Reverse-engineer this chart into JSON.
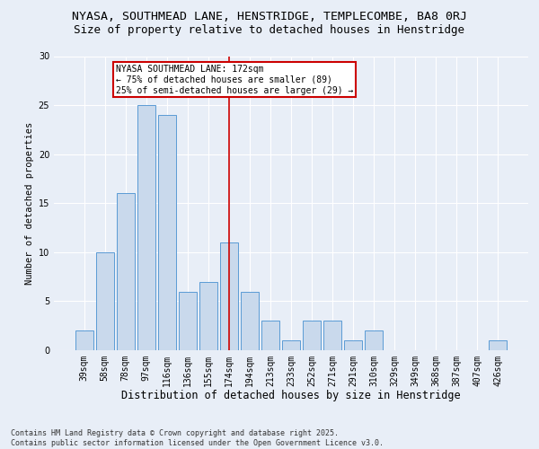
{
  "title1": "NYASA, SOUTHMEAD LANE, HENSTRIDGE, TEMPLECOMBE, BA8 0RJ",
  "title2": "Size of property relative to detached houses in Henstridge",
  "xlabel": "Distribution of detached houses by size in Henstridge",
  "ylabel": "Number of detached properties",
  "categories": [
    "39sqm",
    "58sqm",
    "78sqm",
    "97sqm",
    "116sqm",
    "136sqm",
    "155sqm",
    "174sqm",
    "194sqm",
    "213sqm",
    "233sqm",
    "252sqm",
    "271sqm",
    "291sqm",
    "310sqm",
    "329sqm",
    "349sqm",
    "368sqm",
    "387sqm",
    "407sqm",
    "426sqm"
  ],
  "values": [
    2,
    10,
    16,
    25,
    24,
    6,
    7,
    11,
    6,
    3,
    1,
    3,
    3,
    1,
    2,
    0,
    0,
    0,
    0,
    0,
    1
  ],
  "bar_color": "#c9d9ec",
  "bar_edge_color": "#5b9bd5",
  "highlight_index": 7,
  "highlight_line_color": "#cc0000",
  "annotation_text": "NYASA SOUTHMEAD LANE: 172sqm\n← 75% of detached houses are smaller (89)\n25% of semi-detached houses are larger (29) →",
  "annotation_box_color": "#ffffff",
  "annotation_box_edge": "#cc0000",
  "ylim": [
    0,
    30
  ],
  "yticks": [
    0,
    5,
    10,
    15,
    20,
    25,
    30
  ],
  "background_color": "#e8eef7",
  "plot_bg_color": "#e8eef7",
  "grid_color": "#ffffff",
  "footer": "Contains HM Land Registry data © Crown copyright and database right 2025.\nContains public sector information licensed under the Open Government Licence v3.0.",
  "title1_fontsize": 9.5,
  "title2_fontsize": 9,
  "xlabel_fontsize": 8.5,
  "ylabel_fontsize": 7.5,
  "tick_fontsize": 7,
  "footer_fontsize": 6
}
